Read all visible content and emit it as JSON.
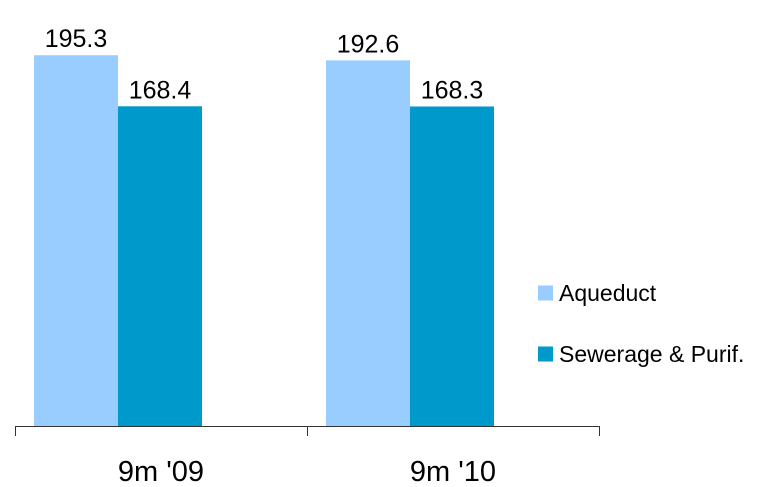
{
  "chart_data": {
    "type": "bar",
    "categories": [
      "9m '09",
      "9m '10"
    ],
    "series": [
      {
        "name": "Aqueduct",
        "values": [
          195.3,
          192.6
        ],
        "color": "#99ccff"
      },
      {
        "name": "Sewerage & Purif.",
        "values": [
          168.4,
          168.3
        ],
        "color": "#0099cc"
      }
    ],
    "value_labels": [
      [
        "195.3",
        "192.6"
      ],
      [
        "168.4",
        "168.3"
      ]
    ],
    "title": "",
    "xlabel": "",
    "ylabel": "",
    "ylim": [
      0,
      197
    ],
    "grid": false,
    "legend_position": "right"
  }
}
